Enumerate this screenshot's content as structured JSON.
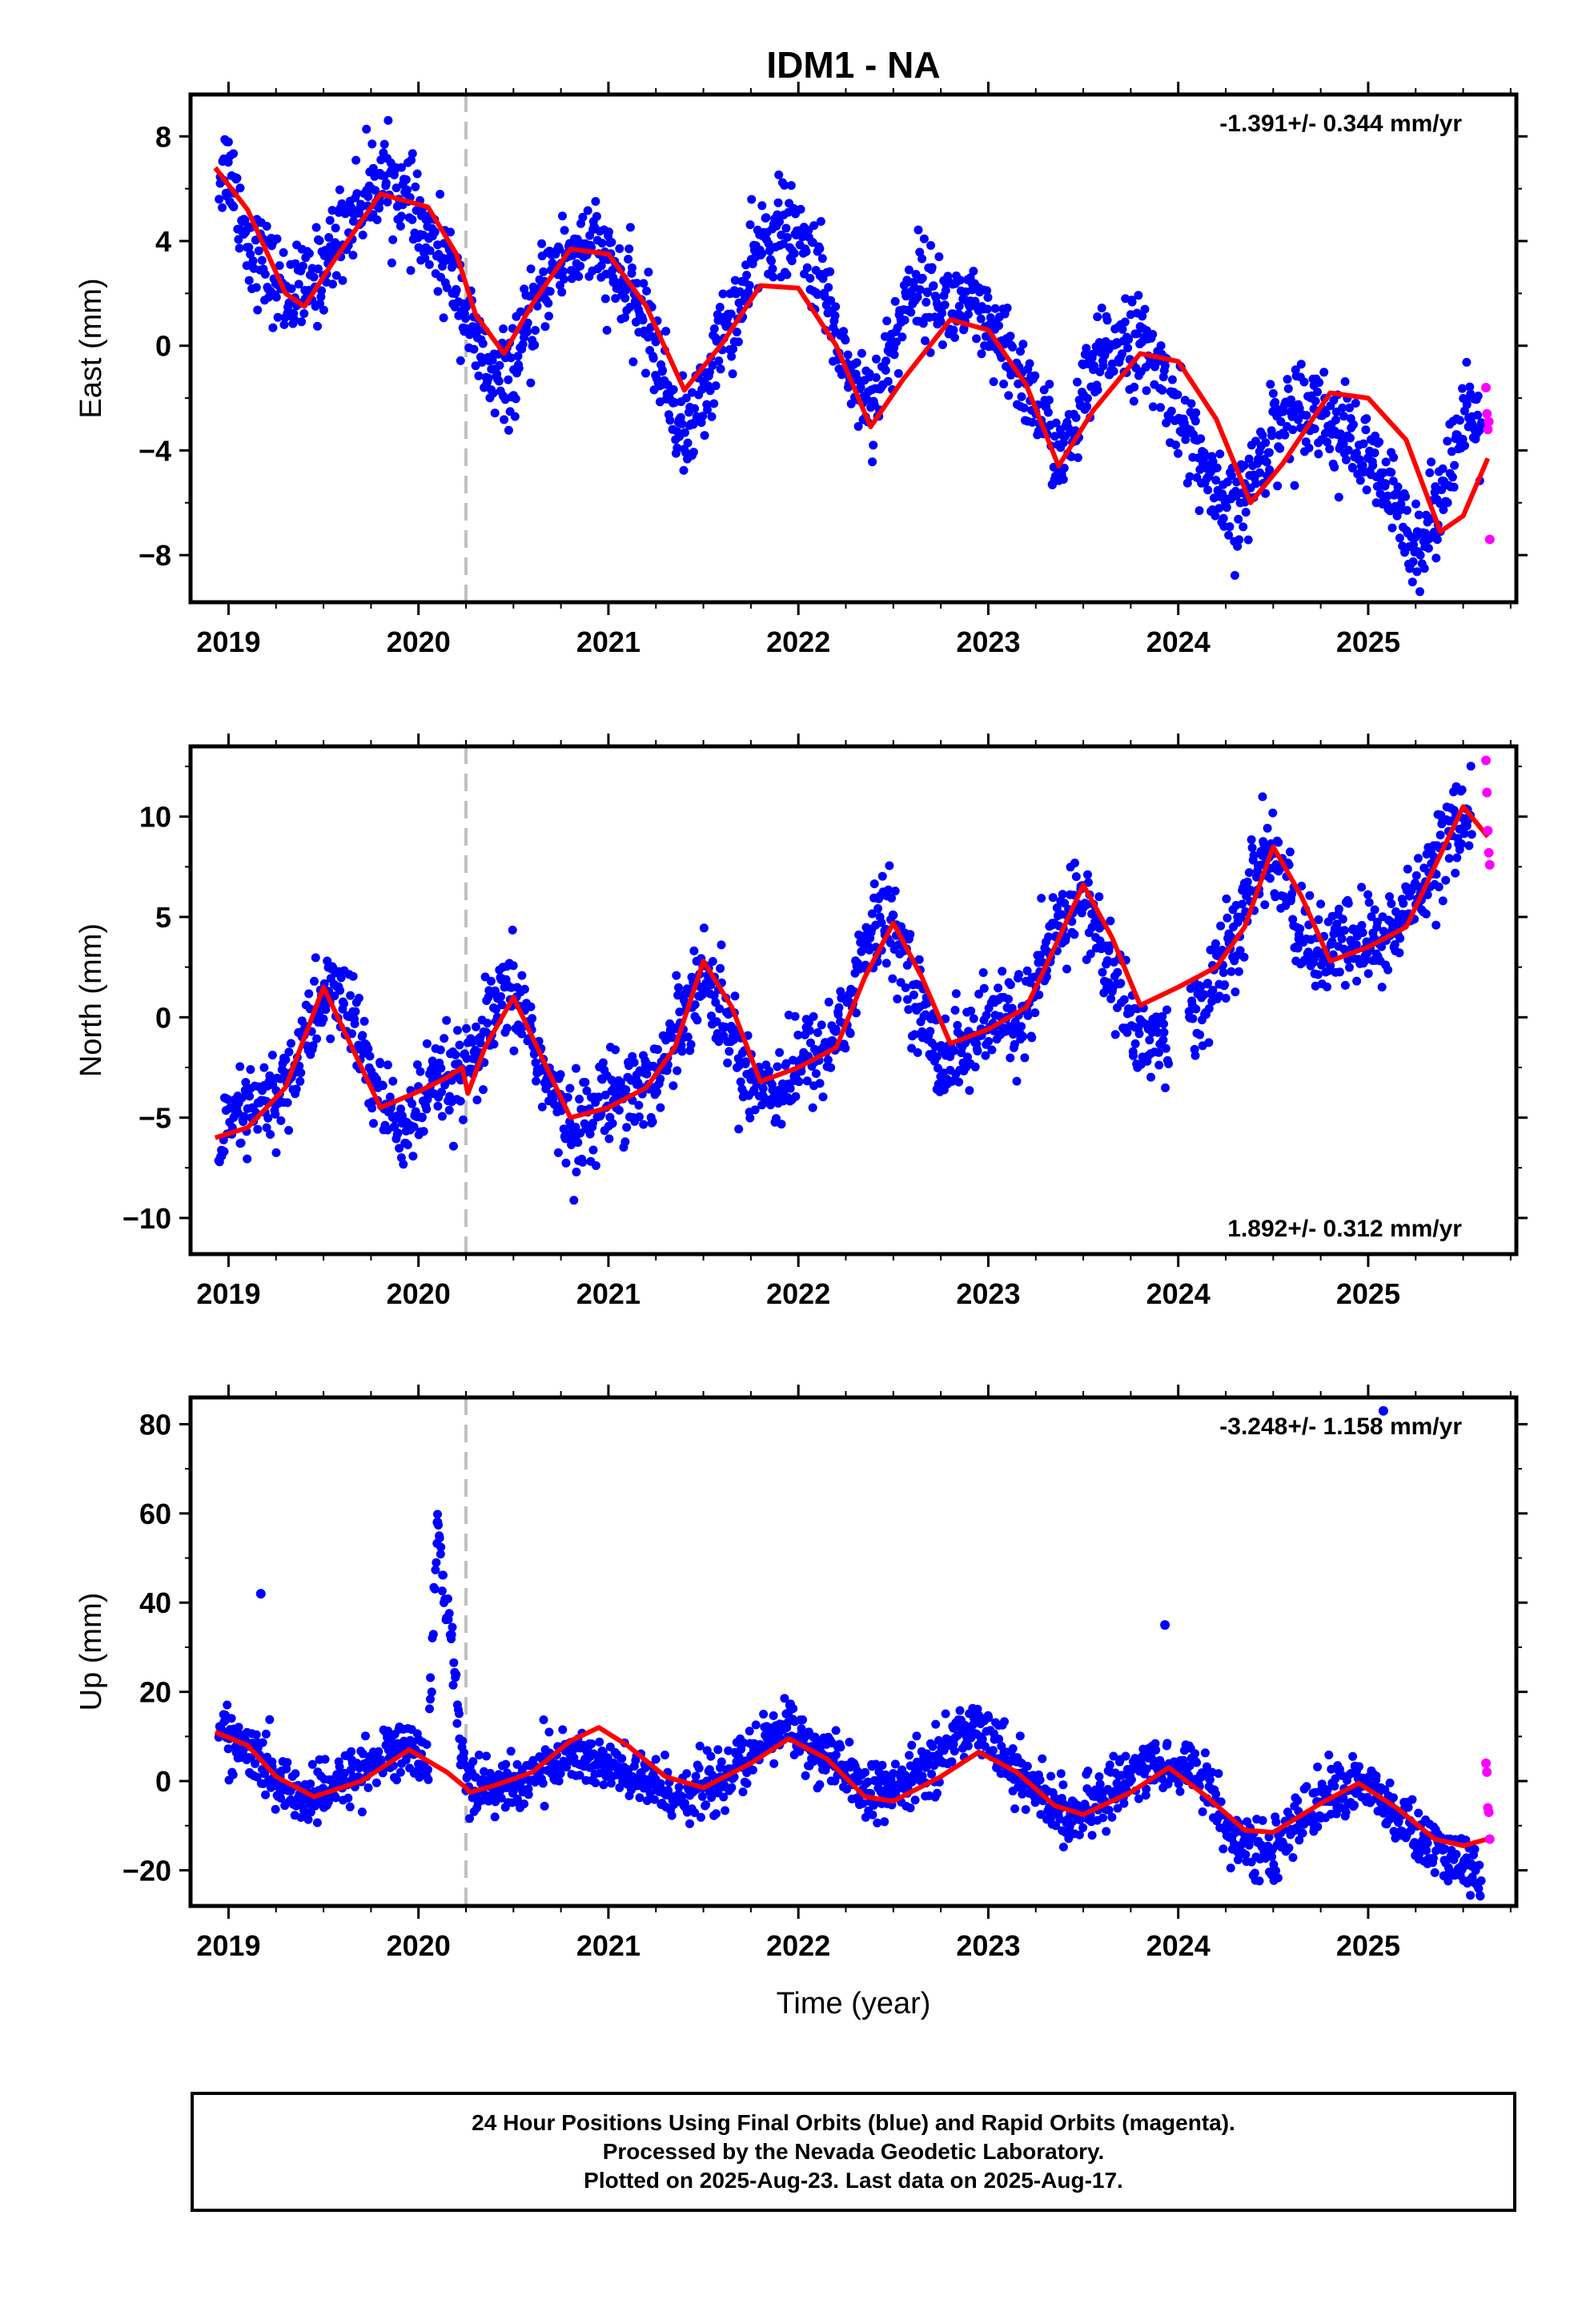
{
  "chart_data": {
    "type": "scatter",
    "title": "IDM1 - NA",
    "xlabel": "Time (year)",
    "xlim": [
      2018.8,
      2025.78
    ],
    "x_ticks": [
      "2019",
      "2020",
      "2021",
      "2022",
      "2023",
      "2024",
      "2025"
    ],
    "x_tick_values": [
      2019,
      2020,
      2021,
      2022,
      2023,
      2024,
      2025
    ],
    "dashed_line_x": 2020.25,
    "colors": {
      "final": "#0000ff",
      "rapid": "#ff00ff",
      "model": "#ff0000",
      "dashed": "#c0c0c0"
    },
    "legend": "none",
    "grid": false,
    "panels": [
      {
        "ylabel": "East (mm)",
        "ylim": [
          -9.8,
          9.6
        ],
        "y_ticks": [
          -8,
          -4,
          0,
          4,
          8
        ],
        "rate_text": "-1.391+/- 0.344 mm/yr",
        "rate_position": "top-right",
        "model": {
          "x": [
            2018.93,
            2019.1,
            2019.3,
            2019.4,
            2019.55,
            2019.8,
            2020.05,
            2020.2,
            2020.3,
            2020.45,
            2020.6,
            2020.8,
            2021.0,
            2021.2,
            2021.4,
            2021.6,
            2021.8,
            2022.0,
            2022.2,
            2022.38,
            2022.55,
            2022.8,
            2023.0,
            2023.2,
            2023.37,
            2023.55,
            2023.8,
            2024.0,
            2024.2,
            2024.38,
            2024.55,
            2024.8,
            2025.0,
            2025.2,
            2025.38,
            2025.5,
            2025.63
          ],
          "y": [
            6.8,
            5.2,
            2.0,
            1.5,
            3.2,
            5.8,
            5.3,
            3.5,
            1.2,
            -0.3,
            1.6,
            3.7,
            3.5,
            1.5,
            -1.7,
            0.1,
            2.3,
            2.2,
            0.0,
            -3.1,
            -1.3,
            1.0,
            0.6,
            -1.5,
            -4.6,
            -2.5,
            -0.3,
            -0.6,
            -2.8,
            -6.0,
            -4.5,
            -1.8,
            -2.0,
            -3.6,
            -7.1,
            -6.5,
            -4.3
          ]
        },
        "blue_points_approx": {
          "x": [
            2018.95,
            2019.0,
            2019.05,
            2019.1,
            2019.15,
            2019.2,
            2019.3,
            2019.4,
            2019.5,
            2019.6,
            2019.7,
            2019.8,
            2019.9,
            2020.0,
            2020.1,
            2020.2,
            2020.3,
            2020.4,
            2020.5,
            2020.6,
            2020.7,
            2020.8,
            2020.9,
            2021.0,
            2021.1,
            2021.2,
            2021.3,
            2021.4,
            2021.5,
            2021.6,
            2021.7,
            2021.8,
            2021.9,
            2022.0,
            2022.1,
            2022.2,
            2022.3,
            2022.4,
            2022.5,
            2022.6,
            2022.7,
            2022.8,
            2022.9,
            2023.0,
            2023.1,
            2023.2,
            2023.3,
            2023.4,
            2023.5,
            2023.6,
            2023.7,
            2023.8,
            2023.9,
            2024.0,
            2024.1,
            2024.2,
            2024.3,
            2024.4,
            2024.5,
            2024.6,
            2024.7,
            2024.8,
            2024.9,
            2025.0,
            2025.1,
            2025.2,
            2025.3,
            2025.4,
            2025.5,
            2025.6
          ],
          "y": [
            6.5,
            7.0,
            5.5,
            4.0,
            3.5,
            3.0,
            2.0,
            2.0,
            3.0,
            4.5,
            5.5,
            6.5,
            6.0,
            4.5,
            3.5,
            2.5,
            0.0,
            -1.5,
            -1.0,
            1.0,
            3.0,
            3.5,
            4.0,
            3.0,
            2.0,
            1.0,
            -1.5,
            -3.5,
            -2.0,
            0.5,
            1.5,
            4.0,
            4.5,
            4.0,
            3.0,
            0.5,
            -1.5,
            -2.0,
            0.0,
            2.5,
            2.0,
            1.5,
            1.5,
            0.5,
            -0.5,
            -1.5,
            -3.0,
            -4.5,
            -2.0,
            -0.5,
            0.5,
            0.0,
            -1.0,
            -2.5,
            -4.0,
            -6.0,
            -6.5,
            -5.0,
            -3.0,
            -2.5,
            -2.0,
            -3.0,
            -3.5,
            -4.5,
            -5.5,
            -7.0,
            -7.5,
            -5.0,
            -3.0,
            -3.0
          ]
        },
        "rapid_points": {
          "x": [
            2025.62,
            2025.625,
            2025.63,
            2025.635,
            2025.64
          ],
          "y": [
            -1.6,
            -2.6,
            -3.2,
            -2.9,
            -7.4
          ]
        }
      },
      {
        "ylabel": "North (mm)",
        "ylim": [
          -11.8,
          13.5
        ],
        "y_ticks": [
          -10,
          -5,
          0,
          5,
          10
        ],
        "rate_text": "1.892+/- 0.312 mm/yr",
        "rate_position": "bottom-right",
        "model": {
          "x": [
            2018.93,
            2019.1,
            2019.3,
            2019.5,
            2019.7,
            2019.8,
            2020.0,
            2020.15,
            2020.23,
            2020.26,
            2020.35,
            2020.5,
            2020.65,
            2020.8,
            2021.0,
            2021.2,
            2021.35,
            2021.5,
            2021.65,
            2021.8,
            2022.0,
            2022.2,
            2022.35,
            2022.5,
            2022.65,
            2022.8,
            2023.0,
            2023.2,
            2023.35,
            2023.5,
            2023.65,
            2023.8,
            2024.0,
            2024.2,
            2024.35,
            2024.5,
            2024.65,
            2024.8,
            2025.0,
            2025.2,
            2025.35,
            2025.5,
            2025.63
          ],
          "y": [
            -6.0,
            -5.5,
            -3.5,
            1.5,
            -2.5,
            -4.5,
            -3.7,
            -3.0,
            -2.5,
            -3.8,
            -1.5,
            1.0,
            -2.0,
            -5.0,
            -4.5,
            -3.5,
            -1.5,
            2.8,
            0.5,
            -3.2,
            -2.5,
            -1.5,
            2.0,
            4.7,
            2.0,
            -1.3,
            -0.6,
            0.5,
            3.5,
            6.6,
            4.0,
            0.6,
            1.5,
            2.5,
            4.5,
            8.5,
            6.0,
            2.8,
            3.5,
            4.5,
            7.5,
            10.5,
            9.0
          ]
        },
        "blue_points_approx": {
          "x": [
            2018.95,
            2019.05,
            2019.15,
            2019.25,
            2019.35,
            2019.45,
            2019.55,
            2019.65,
            2019.75,
            2019.85,
            2019.95,
            2020.05,
            2020.15,
            2020.25,
            2020.35,
            2020.45,
            2020.55,
            2020.65,
            2020.75,
            2020.85,
            2020.95,
            2021.05,
            2021.15,
            2021.25,
            2021.35,
            2021.45,
            2021.55,
            2021.65,
            2021.75,
            2021.85,
            2021.95,
            2022.05,
            2022.15,
            2022.25,
            2022.35,
            2022.45,
            2022.55,
            2022.65,
            2022.75,
            2022.85,
            2022.95,
            2023.05,
            2023.15,
            2023.25,
            2023.35,
            2023.45,
            2023.55,
            2023.65,
            2023.75,
            2023.85,
            2024.05,
            2024.15,
            2024.25,
            2024.35,
            2024.45,
            2024.55,
            2024.65,
            2024.75,
            2024.85,
            2024.95,
            2025.05,
            2025.15,
            2025.25,
            2025.35,
            2025.45,
            2025.55
          ],
          "y": [
            -6.5,
            -5.0,
            -4.5,
            -4.0,
            -2.5,
            0.0,
            1.5,
            0.0,
            -3.0,
            -5.0,
            -5.5,
            -4.0,
            -3.0,
            -3.0,
            -1.0,
            1.0,
            0.5,
            -2.5,
            -5.0,
            -5.5,
            -4.5,
            -3.5,
            -3.5,
            -3.0,
            -1.0,
            2.0,
            1.5,
            -1.0,
            -3.0,
            -3.5,
            -3.0,
            -2.0,
            -1.5,
            0.0,
            3.5,
            5.0,
            3.5,
            0.0,
            -2.0,
            -1.5,
            -1.0,
            0.0,
            0.0,
            1.0,
            4.0,
            6.0,
            5.0,
            2.0,
            0.0,
            -1.5,
            0.0,
            1.0,
            3.0,
            5.0,
            8.5,
            7.0,
            4.0,
            3.0,
            3.5,
            4.0,
            3.5,
            4.5,
            6.0,
            8.0,
            9.5,
            10.0
          ]
        },
        "rapid_points": {
          "x": [
            2025.62,
            2025.625,
            2025.63,
            2025.635,
            2025.64
          ],
          "y": [
            12.8,
            11.2,
            9.3,
            8.2,
            7.6
          ]
        }
      },
      {
        "ylabel": "Up (mm)",
        "ylim": [
          -28,
          86
        ],
        "y_ticks": [
          -20,
          0,
          20,
          40,
          60,
          80
        ],
        "rate_text": "-3.248+/- 1.158 mm/yr",
        "rate_position": "top-right",
        "model": {
          "x": [
            2018.93,
            2019.1,
            2019.25,
            2019.45,
            2019.7,
            2019.95,
            2020.15,
            2020.25,
            2020.27,
            2020.4,
            2020.6,
            2020.8,
            2020.95,
            2021.1,
            2021.3,
            2021.5,
            2021.75,
            2021.95,
            2022.15,
            2022.35,
            2022.5,
            2022.75,
            2022.95,
            2023.15,
            2023.35,
            2023.5,
            2023.75,
            2023.95,
            2024.15,
            2024.35,
            2024.5,
            2024.75,
            2024.95,
            2025.15,
            2025.35,
            2025.5,
            2025.63
          ],
          "y": [
            11.0,
            8.0,
            1.0,
            -3.5,
            0.0,
            7.0,
            2.0,
            -1.5,
            -2.5,
            -1.0,
            2.0,
            9.0,
            12.0,
            8.0,
            1.0,
            -1.5,
            4.0,
            9.5,
            5.0,
            -3.5,
            -4.5,
            1.0,
            6.5,
            2.0,
            -5.5,
            -7.5,
            -2.5,
            3.0,
            -3.5,
            -11.0,
            -11.5,
            -5.0,
            -0.5,
            -6.0,
            -13.0,
            -14.5,
            -13.0
          ]
        },
        "blue_points_approx": {
          "x": [
            2018.95,
            2019.05,
            2019.15,
            2019.25,
            2019.35,
            2019.45,
            2019.55,
            2019.65,
            2019.75,
            2019.85,
            2019.95,
            2020.05,
            2020.1,
            2020.25,
            2020.35,
            2020.45,
            2020.55,
            2020.65,
            2020.75,
            2020.85,
            2020.95,
            2021.05,
            2021.15,
            2021.25,
            2021.35,
            2021.45,
            2021.55,
            2021.65,
            2021.75,
            2021.85,
            2021.95,
            2022.05,
            2022.15,
            2022.25,
            2022.35,
            2022.45,
            2022.55,
            2022.65,
            2022.75,
            2022.85,
            2022.95,
            2023.05,
            2023.15,
            2023.25,
            2023.35,
            2023.45,
            2023.55,
            2023.65,
            2023.75,
            2023.85,
            2023.95,
            2024.05,
            2024.15,
            2024.25,
            2024.35,
            2024.45,
            2024.55,
            2024.65,
            2024.75,
            2024.85,
            2024.95,
            2025.05,
            2025.15,
            2025.25,
            2025.35,
            2025.45,
            2025.55,
            2025.6
          ],
          "y": [
            12.0,
            8.0,
            5.0,
            0.0,
            -3.0,
            -4.0,
            -2.0,
            2.0,
            4.0,
            6.0,
            8.0,
            4.0,
            58.0,
            0.0,
            -1.0,
            -2.0,
            0.0,
            3.0,
            5.0,
            6.0,
            4.0,
            2.0,
            0.0,
            -1.0,
            -3.0,
            -2.0,
            -1.0,
            2.0,
            5.0,
            10.0,
            13.0,
            8.0,
            4.0,
            2.0,
            -2.0,
            -3.0,
            -1.0,
            3.0,
            6.0,
            10.0,
            14.0,
            8.0,
            2.0,
            -2.0,
            -6.0,
            -8.0,
            -6.0,
            -2.0,
            2.0,
            4.0,
            2.0,
            4.0,
            0.0,
            -10.0,
            -15.0,
            -16.0,
            -14.0,
            -8.0,
            -4.0,
            -2.0,
            0.0,
            -4.0,
            -8.0,
            -12.0,
            -16.0,
            -18.0,
            -20.0,
            -21.0
          ]
        },
        "outliers": {
          "x": [
            2019.17,
            2020.1,
            2023.93,
            2025.08
          ],
          "y": [
            42,
            58,
            35,
            83
          ]
        },
        "rapid_points": {
          "x": [
            2025.62,
            2025.625,
            2025.63,
            2025.635,
            2025.64
          ],
          "y": [
            4.0,
            2.0,
            -6.0,
            -7.0,
            -13.0
          ]
        }
      }
    ]
  },
  "caption": {
    "line1": "24 Hour Positions Using Final Orbits (blue) and Rapid Orbits (magenta).",
    "line2": "Processed by the Nevada Geodetic Laboratory.",
    "line3": "Plotted on 2025-Aug-23. Last data on 2025-Aug-17."
  }
}
